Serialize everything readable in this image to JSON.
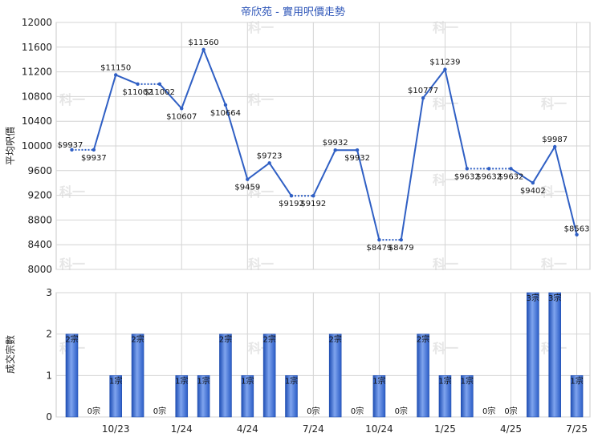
{
  "chart_data": [
    {
      "type": "line",
      "title": "帝欣苑 - 實用呎價走勢",
      "ylabel": "平均呎價",
      "ylim": [
        8000,
        12000
      ],
      "yticks": [
        8000,
        8400,
        8800,
        9200,
        9600,
        10000,
        10400,
        10800,
        11200,
        11600,
        12000
      ],
      "grid": true,
      "color": "#2f5fc4",
      "x_tick_labels": [
        "10/23",
        "1/24",
        "4/24",
        "7/24",
        "10/24",
        "1/25",
        "4/25",
        "7/25"
      ],
      "points": [
        {
          "x": "8/23",
          "value": 9937,
          "label": "$9937"
        },
        {
          "x": "9/23",
          "value": 9937,
          "label": "$9937"
        },
        {
          "x": "10/23",
          "value": 11150,
          "label": "$11150"
        },
        {
          "x": "11/23",
          "value": 11002,
          "label": "$11002"
        },
        {
          "x": "12/23",
          "value": 11002,
          "label": "$11002"
        },
        {
          "x": "1/24",
          "value": 10607,
          "label": "$10607"
        },
        {
          "x": "2/24",
          "value": 11560,
          "label": "$11560"
        },
        {
          "x": "3/24",
          "value": 10664,
          "label": "$10664"
        },
        {
          "x": "4/24",
          "value": 9459,
          "label": "$9459"
        },
        {
          "x": "5/24",
          "value": 9723,
          "label": "$9723"
        },
        {
          "x": "6/24",
          "value": 9192,
          "label": "$9192"
        },
        {
          "x": "7/24",
          "value": 9192,
          "label": "$9192"
        },
        {
          "x": "8/24",
          "value": 9932,
          "label": "$9932"
        },
        {
          "x": "9/24",
          "value": 9932,
          "label": "$9932"
        },
        {
          "x": "10/24",
          "value": 8479,
          "label": "$8479"
        },
        {
          "x": "11/24",
          "value": 8479,
          "label": "$8479"
        },
        {
          "x": "12/24",
          "value": 10777,
          "label": "$10777"
        },
        {
          "x": "1/25",
          "value": 11239,
          "label": "$11239"
        },
        {
          "x": "2/25",
          "value": 9632,
          "label": "$9632"
        },
        {
          "x": "3/25",
          "value": 9632,
          "label": "$9632"
        },
        {
          "x": "4/25",
          "value": 9632,
          "label": "$9632"
        },
        {
          "x": "5/25",
          "value": 9402,
          "label": "$9402"
        },
        {
          "x": "6/25",
          "value": 9987,
          "label": "$9987"
        },
        {
          "x": "7/25",
          "value": 8563,
          "label": "$8563"
        }
      ],
      "dotted_segments_after_index": [
        0,
        3,
        10,
        14,
        18,
        19
      ]
    },
    {
      "type": "bar",
      "ylabel": "成交宗數",
      "ylim": [
        0,
        3
      ],
      "yticks": [
        0,
        1,
        2,
        3
      ],
      "grid": true,
      "color": "#3c6ad0",
      "x_tick_labels": [
        "10/23",
        "1/24",
        "4/24",
        "7/24",
        "10/24",
        "1/25",
        "4/25",
        "7/25"
      ],
      "categories": [
        "8/23",
        "9/23",
        "10/23",
        "11/23",
        "12/23",
        "1/24",
        "2/24",
        "3/24",
        "4/24",
        "5/24",
        "6/24",
        "7/24",
        "8/24",
        "9/24",
        "10/24",
        "11/24",
        "12/24",
        "1/25",
        "2/25",
        "3/25",
        "4/25",
        "5/25",
        "6/25",
        "7/25"
      ],
      "values": [
        2,
        0,
        1,
        2,
        0,
        1,
        1,
        2,
        1,
        2,
        1,
        0,
        2,
        0,
        1,
        0,
        2,
        1,
        1,
        0,
        0,
        3,
        3,
        1
      ],
      "labels": [
        "2宗",
        "0宗",
        "1宗",
        "2宗",
        "0宗",
        "1宗",
        "1宗",
        "2宗",
        "1宗",
        "2宗",
        "1宗",
        "0宗",
        "2宗",
        "0宗",
        "1宗",
        "0宗",
        "2宗",
        "1宗",
        "1宗",
        "0宗",
        "0宗",
        "3宗",
        "3宗",
        "1宗"
      ]
    }
  ],
  "watermark": "科一"
}
